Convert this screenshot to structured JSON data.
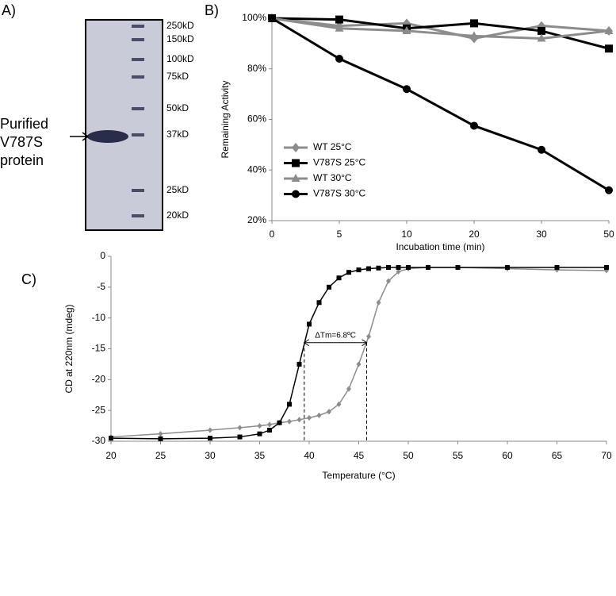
{
  "gel": {
    "panel_label": "A)",
    "markers": [
      "250kD",
      "150kD",
      "100kD",
      "75kD",
      "50kD",
      "37kD",
      "25kD",
      "20kD"
    ],
    "band_label": [
      "Purified",
      "V787S",
      "protein"
    ]
  },
  "chart_data": [
    {
      "type": "line",
      "panel_label": "B)",
      "x_label": "Incubation time (min)",
      "y_label": "Remaining Activity",
      "categories": [
        0,
        5,
        10,
        20,
        30,
        50
      ],
      "ylim": [
        20,
        100
      ],
      "yticks": [
        {
          "value": 20,
          "label": "20%"
        },
        {
          "value": 40,
          "label": "40%"
        },
        {
          "value": 60,
          "label": "60%"
        },
        {
          "value": 80,
          "label": "80%"
        },
        {
          "value": 100,
          "label": "100%"
        }
      ],
      "legend": "lower-left",
      "series": [
        {
          "name": "WT 25°C",
          "color": "#8c8c8c",
          "marker": "diamond",
          "values": [
            100,
            97,
            98,
            92,
            97,
            95
          ]
        },
        {
          "name": "V787S 25°C",
          "color": "#000000",
          "marker": "square",
          "values": [
            100,
            99.5,
            96,
            98,
            95,
            88
          ]
        },
        {
          "name": "WT 30°C",
          "color": "#8c8c8c",
          "marker": "triangle",
          "values": [
            100,
            96,
            95,
            93,
            92,
            95
          ]
        },
        {
          "name": "V787S 30°C",
          "color": "#000000",
          "marker": "circle",
          "values": [
            100,
            84,
            72,
            57.5,
            48,
            32
          ]
        }
      ]
    },
    {
      "type": "line",
      "panel_label": "C)",
      "x_label": "Temperature (°C)",
      "y_label": "CD at 220nm (mdeg)",
      "x": [
        20,
        25,
        30,
        33,
        35,
        36,
        37,
        38,
        39,
        40,
        41,
        42,
        43,
        44,
        45,
        46,
        47,
        48,
        49,
        50,
        52,
        55,
        60,
        65,
        70
      ],
      "xlim": [
        20,
        70
      ],
      "xticks": [
        20,
        25,
        30,
        35,
        40,
        45,
        50,
        55,
        60,
        65,
        70
      ],
      "ylim": [
        -30,
        0
      ],
      "yticks": [
        -30,
        -25,
        -20,
        -15,
        -10,
        -5,
        0
      ],
      "series": [
        {
          "color": "#8c8c8c",
          "marker": "diamond",
          "values": [
            -29.3,
            -28.8,
            -28.2,
            -27.8,
            -27.5,
            -27.3,
            -27,
            -26.8,
            -26.5,
            -26.2,
            -25.8,
            -25.2,
            -24,
            -21.5,
            -17.5,
            -13,
            -7.5,
            -4,
            -2.5,
            -2,
            -1.8,
            -1.8,
            -2,
            -2.2,
            -2.3
          ]
        },
        {
          "color": "#000000",
          "marker": "square",
          "values": [
            -29.5,
            -29.6,
            -29.5,
            -29.3,
            -28.8,
            -28.2,
            -27,
            -24,
            -17.5,
            -11,
            -7.5,
            -5,
            -3.5,
            -2.6,
            -2.2,
            -2,
            -1.9,
            -1.8,
            -1.8,
            -1.8,
            -1.8,
            -1.8,
            -1.8,
            -1.8,
            -1.8
          ]
        }
      ],
      "annotation": {
        "text": "ΔTm=6.8ºC",
        "x": [
          39.5,
          45.8
        ],
        "y": -14
      }
    }
  ]
}
